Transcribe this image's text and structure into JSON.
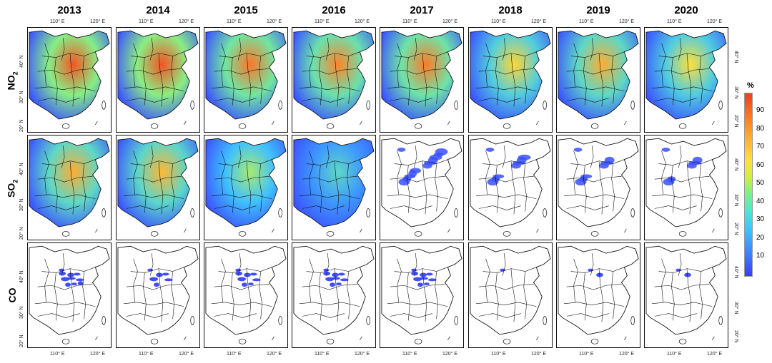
{
  "years": [
    "2013",
    "2014",
    "2015",
    "2016",
    "2017",
    "2018",
    "2019",
    "2020"
  ],
  "rows": [
    {
      "label": "NO",
      "sub": "2",
      "key": "no2"
    },
    {
      "label": "SO",
      "sub": "2",
      "key": "so2"
    },
    {
      "label": "CO",
      "sub": "",
      "key": "co"
    }
  ],
  "axis": {
    "lon_labels": [
      "110° E",
      "120° E"
    ],
    "lat_labels": [
      "40° N",
      "30° N",
      "20° N"
    ]
  },
  "colorbar": {
    "unit": "%",
    "ticks": [
      "90",
      "80",
      "70",
      "60",
      "50",
      "40",
      "30",
      "20",
      "10"
    ],
    "colors": [
      "#3a3aff",
      "#3fc0ff",
      "#7df08a",
      "#ffe03a",
      "#ff7a28",
      "#f03c20"
    ]
  },
  "intensity": {
    "no2": [
      0.92,
      0.93,
      0.82,
      0.78,
      0.8,
      0.62,
      0.7,
      0.6
    ],
    "so2": [
      0.7,
      0.68,
      0.5,
      0.35,
      0.3,
      0.2,
      0.17,
      0.14
    ],
    "co": [
      0.16,
      0.1,
      0.14,
      0.15,
      0.15,
      0.02,
      0.04,
      0.03
    ]
  }
}
